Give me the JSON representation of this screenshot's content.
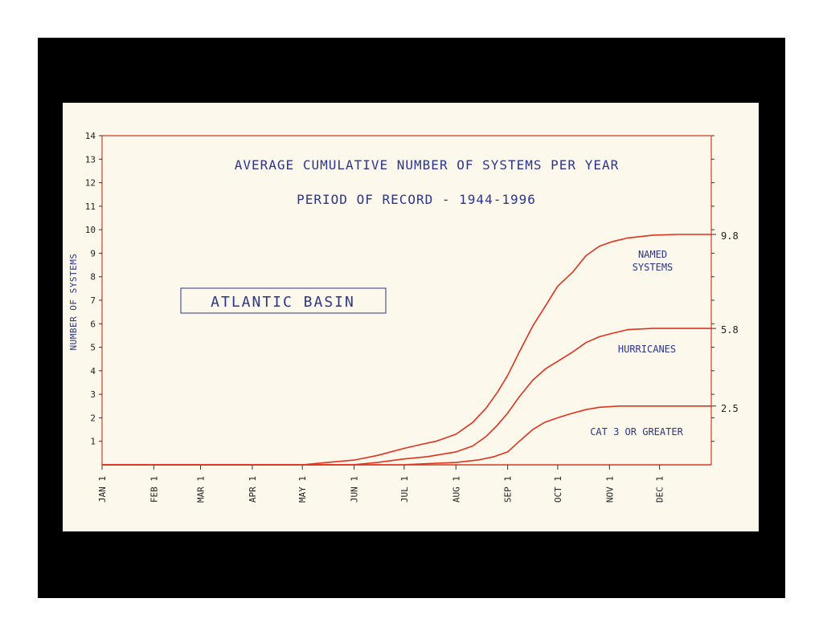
{
  "chart_data": {
    "type": "line",
    "title": "AVERAGE CUMULATIVE NUMBER OF SYSTEMS PER YEAR",
    "subtitle": "PERIOD OF RECORD - 1944-1996",
    "annotation": "ATLANTIC BASIN",
    "ylabel": "NUMBER OF SYSTEMS",
    "xlabel": "",
    "ylim": [
      0,
      14
    ],
    "yticks": [
      1,
      2,
      3,
      4,
      5,
      6,
      7,
      8,
      9,
      10,
      11,
      12,
      13,
      14
    ],
    "xlim": [
      0,
      365
    ],
    "month_ticks": [
      {
        "label": "JAN 1",
        "day": 0
      },
      {
        "label": "FEB 1",
        "day": 31
      },
      {
        "label": "MAR 1",
        "day": 59
      },
      {
        "label": "APR 1",
        "day": 90
      },
      {
        "label": "MAY 1",
        "day": 120
      },
      {
        "label": "JUN 1",
        "day": 151
      },
      {
        "label": "JUL 1",
        "day": 181
      },
      {
        "label": "AUG 1",
        "day": 212
      },
      {
        "label": "SEP 1",
        "day": 243
      },
      {
        "label": "OCT 1",
        "day": 273
      },
      {
        "label": "NOV 1",
        "day": 304
      },
      {
        "label": "DEC 1",
        "day": 334
      }
    ],
    "grid": false,
    "line_color": "#e0321e",
    "series": [
      {
        "name": "NAMED SYSTEMS",
        "end_label": "9.8",
        "points": [
          [
            0,
            0
          ],
          [
            120,
            0
          ],
          [
            135,
            0.1
          ],
          [
            151,
            0.2
          ],
          [
            165,
            0.4
          ],
          [
            181,
            0.7
          ],
          [
            190,
            0.85
          ],
          [
            200,
            1.0
          ],
          [
            212,
            1.3
          ],
          [
            222,
            1.8
          ],
          [
            230,
            2.4
          ],
          [
            237,
            3.1
          ],
          [
            243,
            3.8
          ],
          [
            250,
            4.8
          ],
          [
            258,
            5.9
          ],
          [
            266,
            6.8
          ],
          [
            273,
            7.6
          ],
          [
            282,
            8.2
          ],
          [
            290,
            8.9
          ],
          [
            298,
            9.3
          ],
          [
            306,
            9.5
          ],
          [
            315,
            9.65
          ],
          [
            330,
            9.77
          ],
          [
            345,
            9.8
          ],
          [
            365,
            9.8
          ]
        ]
      },
      {
        "name": "HURRICANES",
        "end_label": "5.8",
        "points": [
          [
            0,
            0
          ],
          [
            150,
            0
          ],
          [
            165,
            0.1
          ],
          [
            181,
            0.25
          ],
          [
            195,
            0.35
          ],
          [
            212,
            0.55
          ],
          [
            222,
            0.8
          ],
          [
            230,
            1.2
          ],
          [
            237,
            1.7
          ],
          [
            243,
            2.2
          ],
          [
            250,
            2.9
          ],
          [
            258,
            3.6
          ],
          [
            266,
            4.1
          ],
          [
            273,
            4.4
          ],
          [
            282,
            4.8
          ],
          [
            290,
            5.2
          ],
          [
            298,
            5.45
          ],
          [
            306,
            5.6
          ],
          [
            315,
            5.75
          ],
          [
            330,
            5.8
          ],
          [
            365,
            5.8
          ]
        ]
      },
      {
        "name": "CAT 3 OR GREATER",
        "end_label": "2.5",
        "points": [
          [
            0,
            0
          ],
          [
            181,
            0
          ],
          [
            195,
            0.05
          ],
          [
            212,
            0.1
          ],
          [
            225,
            0.2
          ],
          [
            235,
            0.35
          ],
          [
            243,
            0.55
          ],
          [
            250,
            1.0
          ],
          [
            258,
            1.5
          ],
          [
            265,
            1.8
          ],
          [
            273,
            2.0
          ],
          [
            282,
            2.2
          ],
          [
            290,
            2.35
          ],
          [
            298,
            2.45
          ],
          [
            310,
            2.5
          ],
          [
            365,
            2.5
          ]
        ]
      }
    ]
  }
}
